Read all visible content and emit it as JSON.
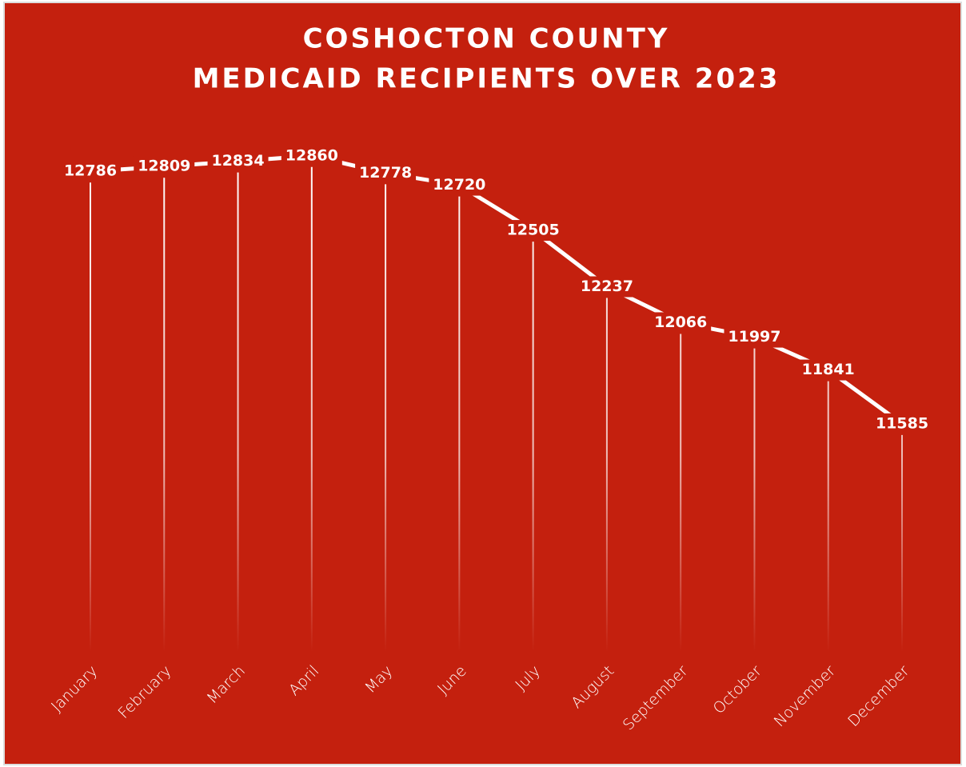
{
  "chart_data": {
    "type": "line",
    "title": [
      "COSHOCTON COUNTY",
      "MEDICAID RECIPIENTS OVER 2023"
    ],
    "categories": [
      "January",
      "February",
      "March",
      "April",
      "May",
      "June",
      "July",
      "August",
      "September",
      "October",
      "November",
      "December"
    ],
    "values": [
      12786,
      12809,
      12834,
      12860,
      12778,
      12720,
      12505,
      12237,
      12066,
      11997,
      11841,
      11585
    ],
    "color": "#ffffff",
    "background": "#c4200e",
    "ylim": [
      10500,
      13000
    ]
  }
}
